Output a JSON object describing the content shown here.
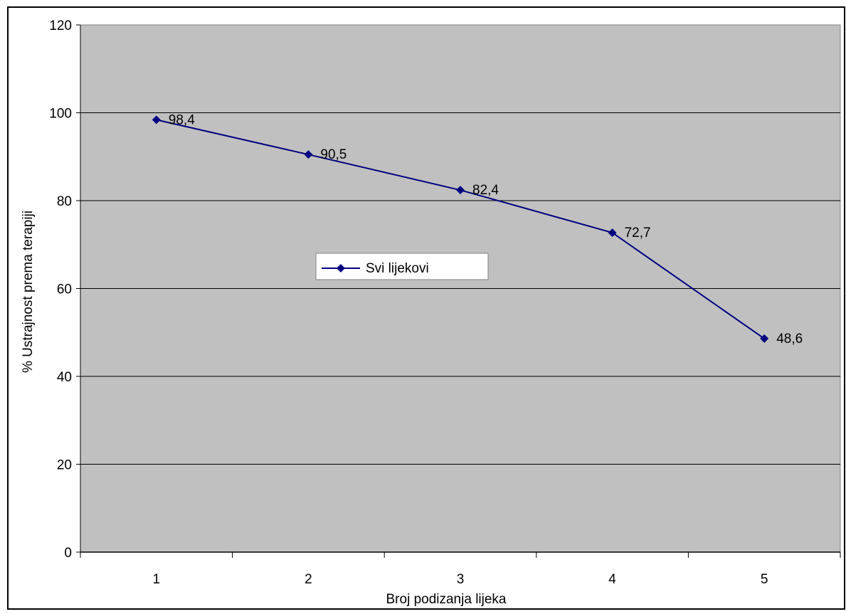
{
  "chart_data": {
    "type": "line",
    "title": "",
    "xlabel": "Broj podizanja lijeka",
    "ylabel": "% Ustrajnost prema terapiji",
    "categories": [
      "1",
      "2",
      "3",
      "4",
      "5"
    ],
    "series": [
      {
        "name": "Svi lijekovi",
        "values": [
          98.4,
          90.5,
          82.4,
          72.7,
          48.6
        ],
        "data_labels": [
          "98,4",
          "90,5",
          "82,4",
          "72,7",
          "48,6"
        ]
      }
    ],
    "ylim": [
      0,
      120
    ],
    "yticks": [
      0,
      20,
      40,
      60,
      80,
      100,
      120
    ],
    "ytick_labels": [
      "0",
      "20",
      "40",
      "60",
      "80",
      "100",
      "120"
    ],
    "grid": "horizontal",
    "legend_position": "center-left",
    "colors": {
      "plot_background": "#c0c0c0",
      "series_line": "#000080",
      "gridline": "#000000",
      "legend_background": "#ffffff"
    }
  }
}
